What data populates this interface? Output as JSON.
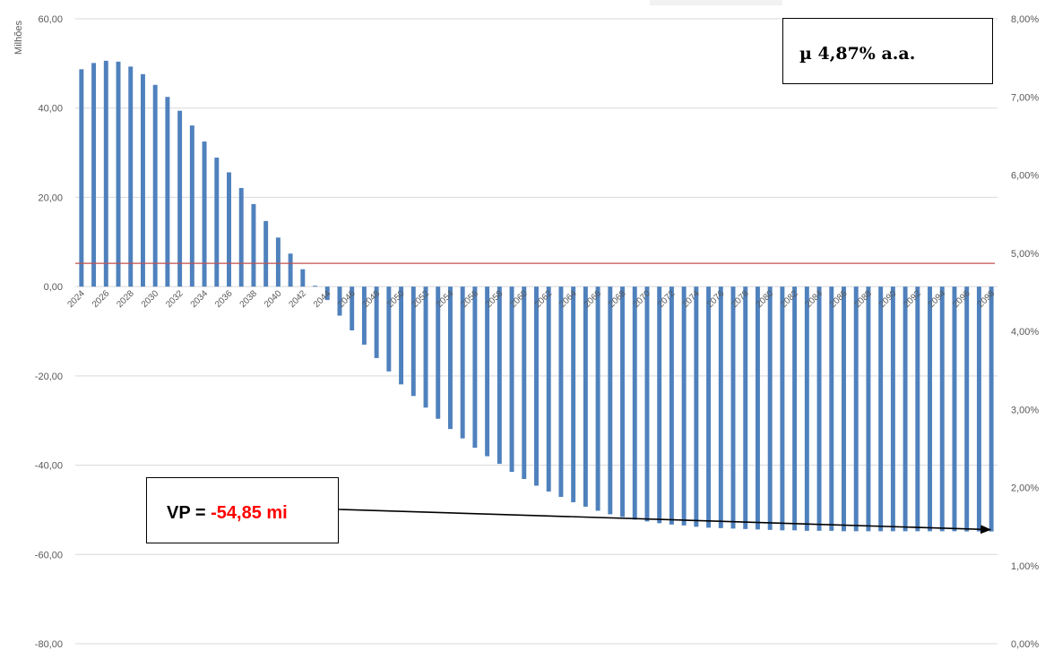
{
  "chart_data": {
    "type": "bar",
    "ylabel": "Milhões",
    "y_ticks": [
      "60,00",
      "40,00",
      "20,00",
      "0,00",
      "-20,00",
      "-40,00",
      "-60,00",
      "-80,00"
    ],
    "y2_ticks": [
      "8,00%",
      "7,00%",
      "6,00%",
      "5,00%",
      "4,00%",
      "3,00%",
      "2,00%",
      "1,00%",
      "0,00%"
    ],
    "ylim": [
      -80,
      60
    ],
    "y2lim": [
      0,
      8
    ],
    "grid": true,
    "categories": [
      "2024",
      "2025",
      "2026",
      "2027",
      "2028",
      "2029",
      "2030",
      "2031",
      "2032",
      "2033",
      "2034",
      "2035",
      "2036",
      "2037",
      "2038",
      "2039",
      "2040",
      "2041",
      "2042",
      "2043",
      "2044",
      "2045",
      "2046",
      "2047",
      "2048",
      "2049",
      "2050",
      "2051",
      "2052",
      "2053",
      "2054",
      "2055",
      "2056",
      "2057",
      "2058",
      "2059",
      "2060",
      "2061",
      "2062",
      "2063",
      "2064",
      "2065",
      "2066",
      "2067",
      "2068",
      "2069",
      "2070",
      "2071",
      "2072",
      "2073",
      "2074",
      "2075",
      "2076",
      "2077",
      "2078",
      "2079",
      "2080",
      "2081",
      "2082",
      "2083",
      "2084",
      "2085",
      "2086",
      "2087",
      "2088",
      "2089",
      "2090",
      "2091",
      "2092",
      "2093",
      "2094",
      "2095",
      "2096",
      "2097",
      "2098"
    ],
    "tick_labels": [
      "2024",
      "2026",
      "2028",
      "2030",
      "2032",
      "2034",
      "2036",
      "2038",
      "2040",
      "2042",
      "2044",
      "2046",
      "2048",
      "2050",
      "2052",
      "2054",
      "2056",
      "2058",
      "2060",
      "2062",
      "2064",
      "2066",
      "2068",
      "2070",
      "2072",
      "2074",
      "2076",
      "2078",
      "2080",
      "2082",
      "2084",
      "2086",
      "2088",
      "2090",
      "2092",
      "2094",
      "2096",
      "2098"
    ],
    "series": [
      {
        "axis": "primary",
        "color": "#4f81bd",
        "values": [
          48.7,
          50.1,
          50.6,
          50.4,
          49.3,
          47.6,
          45.2,
          42.5,
          39.4,
          36.1,
          32.5,
          28.9,
          25.6,
          22.1,
          18.5,
          14.7,
          11.0,
          7.4,
          3.9,
          0.2,
          -3.0,
          -6.5,
          -9.8,
          -13.0,
          -16.0,
          -19.0,
          -21.9,
          -24.5,
          -27.1,
          -29.6,
          -31.9,
          -34.0,
          -36.1,
          -38.0,
          -39.7,
          -41.5,
          -43.1,
          -44.6,
          -45.9,
          -47.1,
          -48.3,
          -49.3,
          -50.2,
          -51.0,
          -51.6,
          -52.2,
          -52.6,
          -53.0,
          -53.3,
          -53.5,
          -53.8,
          -54.0,
          -54.1,
          -54.2,
          -54.3,
          -54.4,
          -54.5,
          -54.6,
          -54.6,
          -54.7,
          -54.7,
          -54.7,
          -54.8,
          -54.8,
          -54.8,
          -54.8,
          -54.8,
          -54.8,
          -54.8,
          -54.8,
          -54.8,
          -54.8,
          -54.85,
          -54.85,
          -54.85
        ]
      },
      {
        "axis": "secondary",
        "type": "line",
        "color": "#c0504d",
        "value": 4.87
      }
    ]
  },
  "annotations": {
    "mu_text": "µ 4,87% a.a.",
    "vp_prefix": "VP = ",
    "vp_value": "-54,85 mi"
  }
}
